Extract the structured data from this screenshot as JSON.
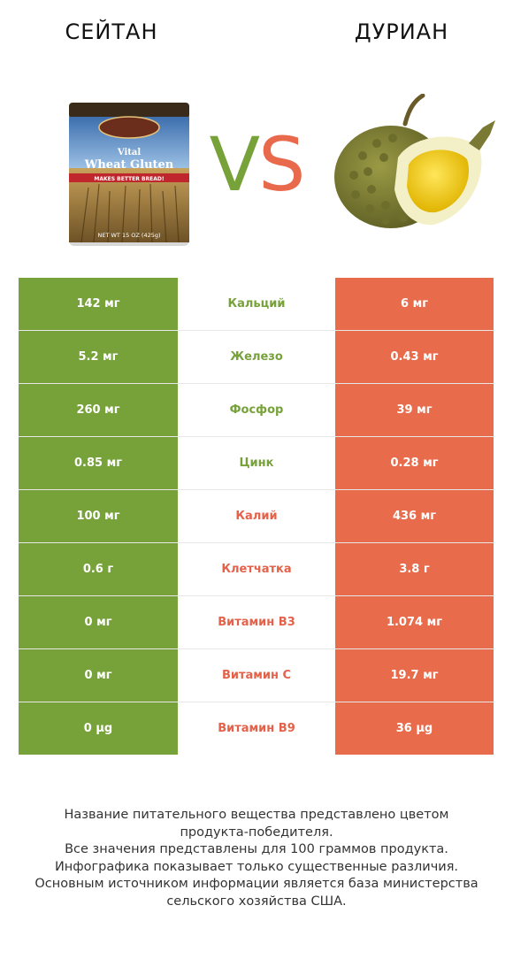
{
  "left_product": {
    "name": "СЕЙТАН",
    "color": "#77a23a"
  },
  "right_product": {
    "name": "ДУРИАН",
    "color": "#e86c4c"
  },
  "vs": {
    "v": "V",
    "s": "S"
  },
  "can_label": {
    "line1": "Vital",
    "line2": "Wheat Gluten",
    "band": "MAKES BETTER BREAD!",
    "net": "NET WT 15 OZ (425g)"
  },
  "rows": [
    {
      "nutrient": "Кальций",
      "left": "142 мг",
      "right": "6 мг",
      "winner": "left"
    },
    {
      "nutrient": "Железо",
      "left": "5.2 мг",
      "right": "0.43 мг",
      "winner": "left"
    },
    {
      "nutrient": "Фосфор",
      "left": "260 мг",
      "right": "39 мг",
      "winner": "left"
    },
    {
      "nutrient": "Цинк",
      "left": "0.85 мг",
      "right": "0.28 мг",
      "winner": "left"
    },
    {
      "nutrient": "Калий",
      "left": "100 мг",
      "right": "436 мг",
      "winner": "right"
    },
    {
      "nutrient": "Клетчатка",
      "left": "0.6 г",
      "right": "3.8 г",
      "winner": "right"
    },
    {
      "nutrient": "Витамин B3",
      "left": "0 мг",
      "right": "1.074 мг",
      "winner": "right"
    },
    {
      "nutrient": "Витамин C",
      "left": "0 мг",
      "right": "19.7 мг",
      "winner": "right"
    },
    {
      "nutrient": "Витамин B9",
      "left": "0 µg",
      "right": "36 µg",
      "winner": "right"
    }
  ],
  "footer": [
    "Название питательного вещества представлено цветом",
    "продукта-победителя.",
    "Все значения представлены для 100 граммов продукта.",
    "Инфографика показывает только существенные различия.",
    "Основным источником информации является база министерства",
    "сельского хозяйства США."
  ]
}
